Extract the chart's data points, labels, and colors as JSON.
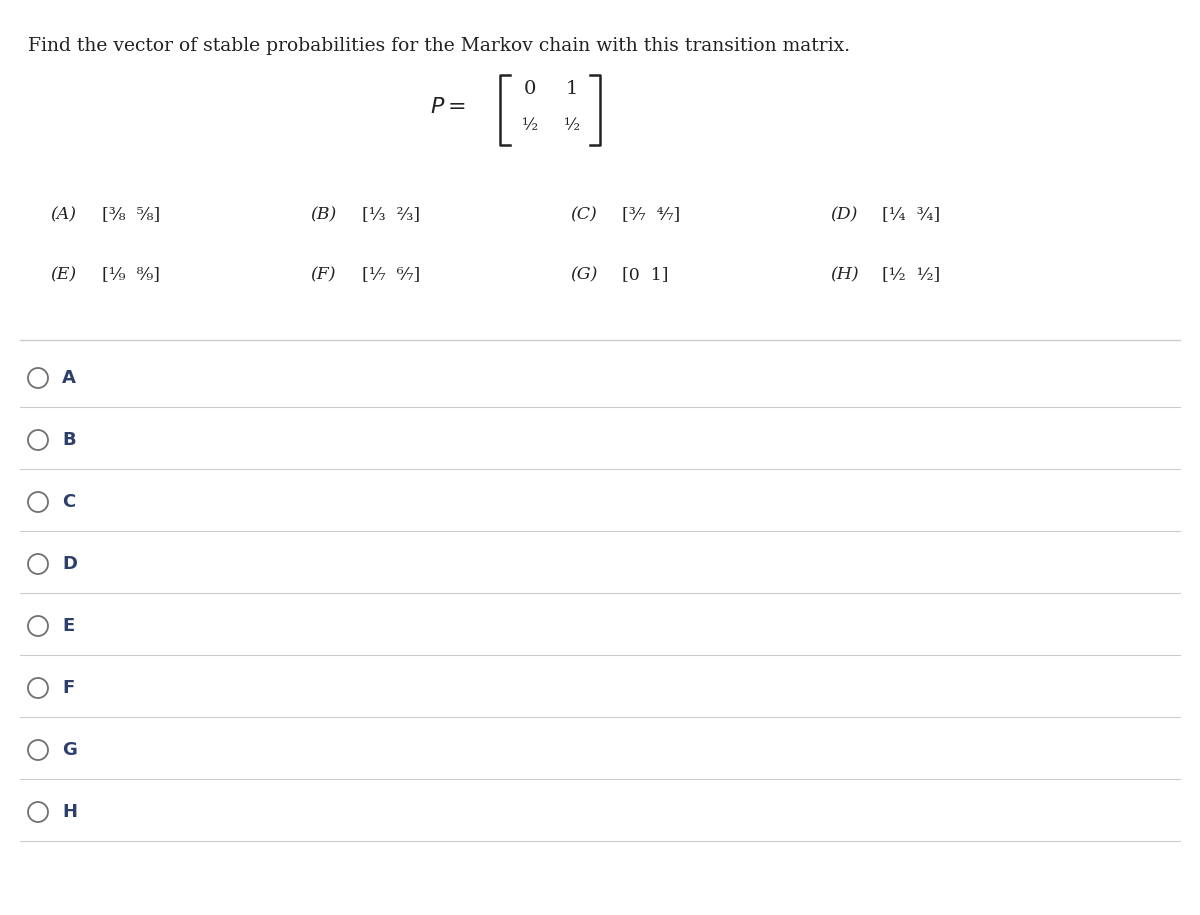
{
  "title": "Find the vector of stable probabilities for the Markov chain with this transition matrix.",
  "bg_color": "#ffffff",
  "text_color": "#222222",
  "option_text_color": "#2d3f6b",
  "line_color": "#cccccc",
  "circle_color": "#555555",
  "title_fontsize": 13.5,
  "choice_fontsize": 12.5,
  "option_fontsize": 13,
  "matrix_fontsize": 13,
  "options": [
    "A",
    "B",
    "C",
    "D",
    "E",
    "F",
    "G",
    "H"
  ]
}
